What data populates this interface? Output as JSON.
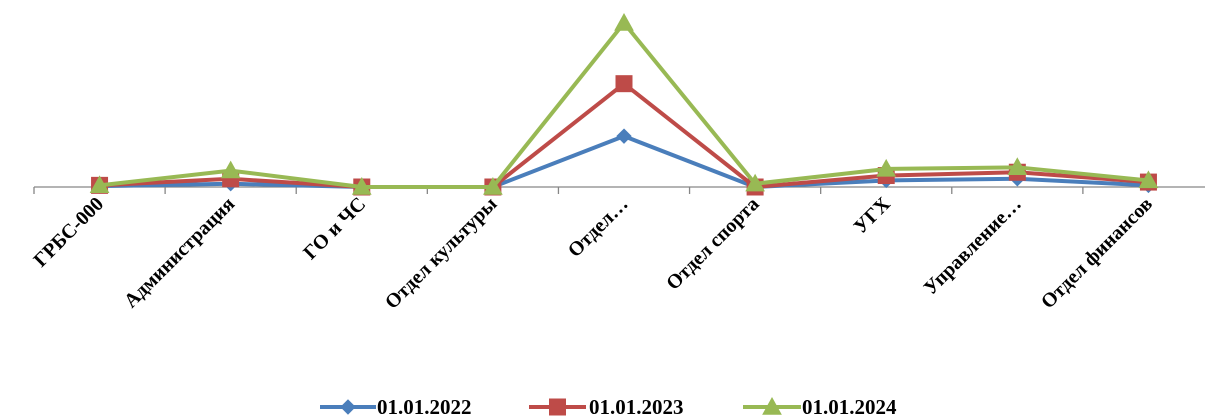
{
  "chart_data": {
    "type": "line",
    "title": "",
    "xlabel": "",
    "ylabel": "",
    "ylim": [
      0,
      100
    ],
    "grid": false,
    "legend": "bottom",
    "categories": [
      "ГРБС-000",
      "Администрация",
      "ГО и ЧС",
      "Отдел культуры",
      "Отдел…",
      "Отдел спорта",
      "УГХ",
      "Управление…",
      "Отдел финансов"
    ],
    "series": [
      {
        "name": "01.01.2022",
        "color": "#4A7EBB",
        "marker": "diamond",
        "values": [
          0.5,
          2,
          0,
          0,
          31,
          0,
          4,
          5,
          1
        ]
      },
      {
        "name": "01.01.2023",
        "color": "#BE4B48",
        "marker": "square",
        "values": [
          1,
          5,
          0,
          0,
          63,
          0,
          7,
          9,
          3
        ]
      },
      {
        "name": "01.01.2024",
        "color": "#98B954",
        "marker": "triangle",
        "values": [
          1,
          10,
          0,
          0,
          100,
          2,
          11,
          12,
          4
        ]
      }
    ]
  }
}
